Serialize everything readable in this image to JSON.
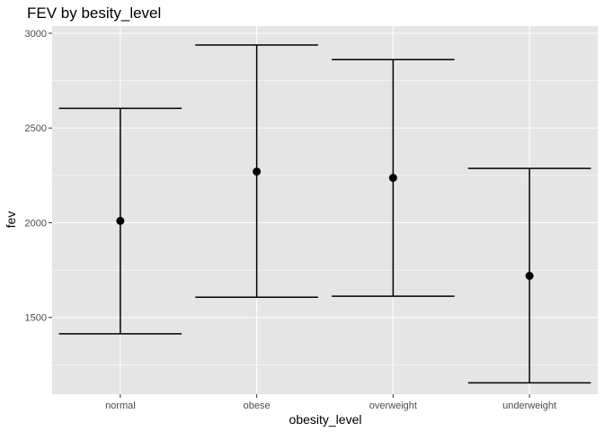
{
  "chart_data": {
    "type": "errorbar",
    "title": "FEV by besity_level",
    "xlabel": "obesity_level",
    "ylabel": "fev",
    "categories": [
      "normal",
      "obese",
      "overweight",
      "underweight"
    ],
    "mean": [
      2010,
      2270,
      2237,
      1720
    ],
    "lower": [
      1414,
      1607,
      1612,
      1155
    ],
    "upper": [
      2604,
      2938,
      2861,
      2287
    ],
    "ylim": [
      1095,
      3038
    ],
    "yticks": [
      1500,
      2000,
      2500,
      3000
    ],
    "grid": true,
    "panel_color": "#e5e5e5",
    "grid_color": "#ffffff",
    "mark_color": "#000000"
  }
}
